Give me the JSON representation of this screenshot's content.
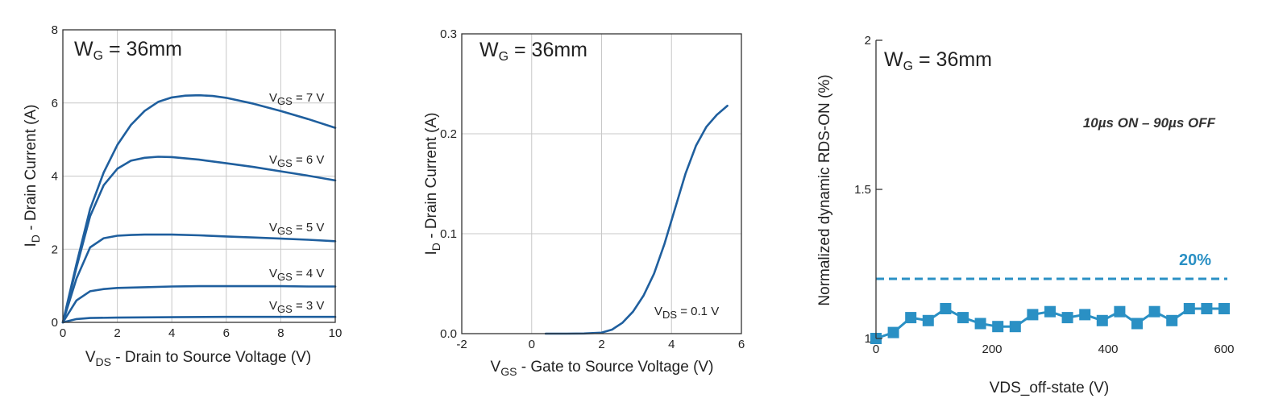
{
  "chart_data": [
    {
      "type": "line",
      "annotation": {
        "main": "W",
        "sub": "G",
        "rest": " = 36mm"
      },
      "xlabel": {
        "main": "V",
        "sub": "DS",
        "rest": " - Drain to Source Voltage (V)"
      },
      "ylabel": {
        "main": "I",
        "sub": "D",
        "rest": " - Drain Current (A)"
      },
      "xlim": [
        0,
        10
      ],
      "ylim": [
        0,
        8
      ],
      "xticks": [
        "0",
        "2",
        "4",
        "6",
        "8",
        "10"
      ],
      "yticks": [
        "0",
        "2",
        "4",
        "6",
        "8"
      ],
      "grid": true,
      "line_color": "#1f5f9e",
      "series": [
        {
          "label": {
            "main": "V",
            "sub": "GS",
            "rest": " = 7 V"
          },
          "x": [
            0,
            0.5,
            1,
            1.5,
            2,
            2.5,
            3,
            3.5,
            4,
            4.5,
            5,
            5.5,
            6,
            7,
            8,
            9,
            10
          ],
          "y": [
            0,
            1.6,
            3.1,
            4.1,
            4.85,
            5.4,
            5.78,
            6.03,
            6.15,
            6.2,
            6.21,
            6.19,
            6.14,
            5.98,
            5.78,
            5.56,
            5.32
          ]
        },
        {
          "label": {
            "main": "V",
            "sub": "GS",
            "rest": " = 6 V"
          },
          "x": [
            0,
            0.5,
            1,
            1.5,
            2,
            2.5,
            3,
            3.5,
            4,
            5,
            6,
            7,
            8,
            9,
            10
          ],
          "y": [
            0,
            1.5,
            2.9,
            3.75,
            4.2,
            4.42,
            4.5,
            4.53,
            4.52,
            4.45,
            4.35,
            4.25,
            4.13,
            4.01,
            3.88
          ]
        },
        {
          "label": {
            "main": "V",
            "sub": "GS",
            "rest": " = 5 V"
          },
          "x": [
            0,
            0.5,
            1,
            1.5,
            2,
            2.5,
            3,
            4,
            5,
            6,
            7,
            8,
            9,
            10
          ],
          "y": [
            0,
            1.2,
            2.05,
            2.3,
            2.37,
            2.39,
            2.4,
            2.4,
            2.38,
            2.35,
            2.32,
            2.29,
            2.26,
            2.22
          ]
        },
        {
          "label": {
            "main": "V",
            "sub": "GS",
            "rest": " = 4 V"
          },
          "x": [
            0,
            0.5,
            1,
            1.5,
            2,
            3,
            4,
            5,
            6,
            7,
            8,
            9,
            10
          ],
          "y": [
            0,
            0.6,
            0.85,
            0.91,
            0.94,
            0.96,
            0.98,
            0.99,
            0.99,
            0.99,
            0.99,
            0.98,
            0.98
          ]
        },
        {
          "label": {
            "main": "V",
            "sub": "GS",
            "rest": " = 3 V"
          },
          "x": [
            0,
            0.5,
            1,
            2,
            4,
            6,
            8,
            10
          ],
          "y": [
            0,
            0.09,
            0.12,
            0.13,
            0.14,
            0.15,
            0.15,
            0.15
          ]
        }
      ]
    },
    {
      "type": "line",
      "annotation": {
        "main": "W",
        "sub": "G",
        "rest": " = 36mm"
      },
      "xlabel": {
        "main": "V",
        "sub": "GS",
        "rest": " - Gate to Source Voltage (V)"
      },
      "ylabel": {
        "main": "I",
        "sub": "D",
        "rest": " - Drain Current (A)"
      },
      "xlim": [
        -2,
        6
      ],
      "ylim": [
        0,
        0.3
      ],
      "xticks": [
        "-2",
        "0",
        "2",
        "4",
        "6"
      ],
      "yticks": [
        "0.0",
        "0.1",
        "0.2",
        "0.3"
      ],
      "grid": true,
      "line_color": "#1f5f9e",
      "series": [
        {
          "label": {
            "main": "V",
            "sub": "DS",
            "rest": " = 0.1 V"
          },
          "x": [
            0.4,
            1,
            1.5,
            2,
            2.3,
            2.6,
            2.9,
            3.2,
            3.5,
            3.8,
            4.1,
            4.4,
            4.7,
            5,
            5.3,
            5.6
          ],
          "y": [
            0,
            0,
            0.0002,
            0.001,
            0.004,
            0.011,
            0.022,
            0.038,
            0.06,
            0.09,
            0.125,
            0.16,
            0.188,
            0.207,
            0.219,
            0.228
          ]
        }
      ]
    },
    {
      "type": "line",
      "annotation": {
        "main": "W",
        "sub": "G",
        "rest": " = 36mm"
      },
      "subtitle": "10µs ON – 90µs OFF",
      "xlabel": "VDS_off-state (V)",
      "ylabel": "Normalized dynamic RDS-ON (%)",
      "xlim": [
        0,
        600
      ],
      "ylim": [
        1,
        2
      ],
      "xticks": [
        "0",
        "200",
        "400",
        "600"
      ],
      "yticks": [
        "1",
        "1.5",
        "2"
      ],
      "grid": false,
      "threshold": {
        "value": 1.2,
        "label": "20%",
        "style": "dashed"
      },
      "marker": "square",
      "line_color": "#2a90c4",
      "series": [
        {
          "x": [
            0,
            30,
            60,
            90,
            120,
            150,
            180,
            210,
            240,
            270,
            300,
            330,
            360,
            390,
            420,
            450,
            480,
            510,
            540,
            570,
            600
          ],
          "y": [
            1.0,
            1.02,
            1.07,
            1.06,
            1.1,
            1.07,
            1.05,
            1.04,
            1.04,
            1.08,
            1.09,
            1.07,
            1.08,
            1.06,
            1.09,
            1.05,
            1.09,
            1.06,
            1.1,
            1.1,
            1.1
          ]
        }
      ]
    }
  ]
}
